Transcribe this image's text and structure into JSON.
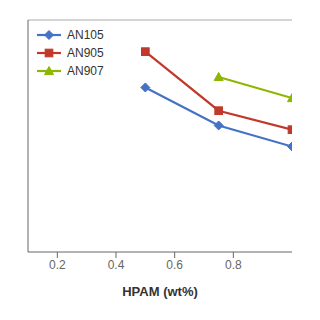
{
  "chart_data": {
    "type": "line",
    "xlabel": "HPAM (wt%)",
    "xlim": [
      0.1,
      1.0
    ],
    "ylim": [
      0.0,
      1.1
    ],
    "xticks": [
      0.2,
      0.4,
      0.6,
      0.8
    ],
    "tick_labels": "x",
    "grid": false,
    "legend": "upper left",
    "series": [
      {
        "name": "AN105",
        "color": "#4472C4",
        "marker": "diamond",
        "x": [
          0.5,
          0.75,
          1.0
        ],
        "values": [
          0.78,
          0.6,
          0.5
        ]
      },
      {
        "name": "AN905",
        "color": "#C0392B",
        "marker": "square",
        "x": [
          0.5,
          0.75,
          1.0
        ],
        "values": [
          0.95,
          0.67,
          0.58
        ]
      },
      {
        "name": "AN907",
        "color": "#8DB600",
        "marker": "triangle",
        "x": [
          0.75,
          1.0
        ],
        "values": [
          0.83,
          0.73
        ]
      }
    ]
  }
}
